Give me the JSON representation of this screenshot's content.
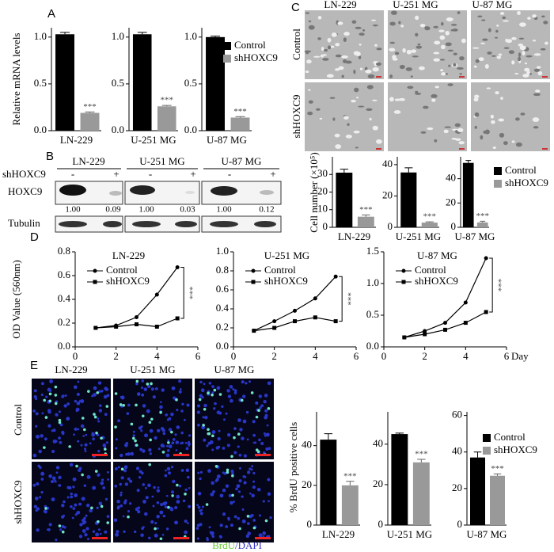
{
  "panel_labels": [
    "A",
    "B",
    "C",
    "D",
    "E"
  ],
  "blot": {
    "cell_lines": [
      "LN-229",
      "U-251 MG",
      "U-87 MG"
    ],
    "condition_label": "shHOXC9",
    "signs": [
      "-",
      "+"
    ],
    "rows": [
      "HOXC9",
      "Tubulin"
    ],
    "ratios": [
      "1.00",
      "0.09",
      "1.00",
      "0.03",
      "1.00",
      "0.12"
    ]
  },
  "images_c": {
    "cell_lines": [
      "LN-229",
      "U-251 MG",
      "U-87 MG"
    ],
    "conditions": [
      "Control",
      "shHOXC9"
    ]
  },
  "images_e": {
    "cell_lines": [
      "LN-229",
      "U-251 MG",
      "U-87 MG"
    ],
    "conditions": [
      "Control",
      "shHOXC9"
    ],
    "stain": [
      "BrdU",
      "/DAPI"
    ]
  },
  "chart_data": [
    {
      "type": "bar",
      "y_label": "Relative mRNA levels",
      "x_label": "LN-229",
      "values": [
        1.03,
        0.19
      ],
      "errors": [
        0.02,
        0.01
      ],
      "colors": [
        "#000000",
        "#999999"
      ],
      "annotation": "***",
      "ylim": [
        0,
        1.1
      ],
      "yticks": [
        {
          "value": 0,
          "label": "0.0"
        },
        0.5,
        {
          "value": 1,
          "label": "1.0"
        }
      ]
    },
    {
      "type": "bar",
      "x_label": "U-251 MG",
      "values": [
        1.03,
        0.26
      ],
      "errors": [
        0.02,
        0.01
      ],
      "colors": [
        "#000000",
        "#999999"
      ],
      "annotation": "***",
      "ylim": [
        0,
        1.1
      ],
      "yticks": [
        {
          "value": 0,
          "label": "0.0"
        },
        0.5,
        {
          "value": 1,
          "label": "1.0"
        }
      ]
    },
    {
      "type": "bar",
      "x_label": "U-87 MG",
      "values": [
        1.0,
        0.14
      ],
      "errors": [
        0.01,
        0.01
      ],
      "colors": [
        "#000000",
        "#999999"
      ],
      "annotation": "***",
      "legend": [
        "Control",
        "shHOXC9"
      ],
      "ylim": [
        0,
        1.1
      ],
      "yticks": [
        {
          "value": 0,
          "label": "0.0"
        },
        0.5,
        {
          "value": 1,
          "label": "1.0"
        }
      ]
    },
    {
      "type": "bar",
      "y_label": "Cell number (×10⁵)",
      "x_label": "LN-229",
      "values": [
        31,
        6
      ],
      "errors": [
        2,
        1
      ],
      "colors": [
        "#000000",
        "#999999"
      ],
      "annotation": "***",
      "ylim": [
        0,
        40
      ],
      "yticks": [
        0,
        10,
        20,
        30
      ]
    },
    {
      "type": "bar",
      "x_label": "U-251 MG",
      "values": [
        35,
        3
      ],
      "errors": [
        3,
        0.5
      ],
      "colors": [
        "#000000",
        "#999999"
      ],
      "annotation": "***",
      "ylim": [
        0,
        45
      ],
      "yticks": [
        0,
        20,
        40
      ]
    },
    {
      "type": "bar",
      "x_label": "U-87 MG",
      "values": [
        53,
        4
      ],
      "errors": [
        2,
        1
      ],
      "colors": [
        "#000000",
        "#999999"
      ],
      "annotation": "***",
      "legend": [
        "Control",
        "shHOXC9"
      ],
      "ylim": [
        0,
        58
      ],
      "yticks": [
        0,
        20,
        40
      ]
    },
    {
      "type": "line",
      "title": "LN-229",
      "y_label": "OD Value (560nm)",
      "x": [
        1,
        2,
        3,
        4,
        5
      ],
      "series": [
        {
          "name": "Control",
          "color": "#000000",
          "marker": "circle",
          "values": [
            0.16,
            0.18,
            0.25,
            0.44,
            0.67
          ]
        },
        {
          "name": "shHOXC9",
          "color": "#000000",
          "marker": "square",
          "values": [
            0.16,
            0.17,
            0.19,
            0.17,
            0.24
          ]
        }
      ],
      "annotation": "***",
      "xlim": [
        0,
        6
      ],
      "xticks": [
        0,
        2,
        4,
        6
      ],
      "ylim": [
        0,
        0.8
      ],
      "yticks": [
        {
          "value": 0,
          "label": "0.0"
        },
        0.2,
        0.4,
        0.6,
        0.8
      ]
    },
    {
      "type": "line",
      "title": "U-251 MG",
      "x": [
        1,
        2,
        3,
        4,
        5
      ],
      "series": [
        {
          "name": "Control",
          "color": "#000000",
          "marker": "circle",
          "values": [
            0.17,
            0.27,
            0.38,
            0.51,
            0.74
          ]
        },
        {
          "name": "shHOXC9",
          "color": "#000000",
          "marker": "square",
          "values": [
            0.17,
            0.2,
            0.27,
            0.31,
            0.27
          ]
        }
      ],
      "annotation": "***",
      "xlim": [
        0,
        6
      ],
      "xticks": [
        0,
        2,
        4,
        6
      ],
      "ylim": [
        0,
        1.0
      ],
      "yticks": [
        {
          "value": 0,
          "label": "0.0"
        },
        0.2,
        0.4,
        0.6,
        0.8,
        {
          "value": 1,
          "label": "1.0"
        }
      ]
    },
    {
      "type": "line",
      "title": "U-87 MG",
      "x_label": "Day",
      "x": [
        1,
        2,
        3,
        4,
        5
      ],
      "series": [
        {
          "name": "Control",
          "color": "#000000",
          "marker": "circle",
          "values": [
            0.15,
            0.25,
            0.38,
            0.7,
            1.4
          ]
        },
        {
          "name": "shHOXC9",
          "color": "#000000",
          "marker": "square",
          "values": [
            0.15,
            0.2,
            0.27,
            0.38,
            0.55
          ]
        }
      ],
      "annotation": "***",
      "xlim": [
        0,
        6
      ],
      "xticks": [
        0,
        2,
        4,
        6
      ],
      "ylim": [
        0,
        1.5
      ],
      "yticks": [
        {
          "value": 0,
          "label": "0.0"
        },
        0.5,
        {
          "value": 1,
          "label": "1.0"
        },
        1.5
      ]
    },
    {
      "type": "bar",
      "y_label": "% BrdU positive cells",
      "x_label": "LN-229",
      "values": [
        43,
        20
      ],
      "errors": [
        3,
        2
      ],
      "colors": [
        "#000000",
        "#999999"
      ],
      "annotation": "***",
      "ylim": [
        0,
        57
      ],
      "yticks": [
        0,
        20,
        40
      ]
    },
    {
      "type": "bar",
      "x_label": "U-251 MG",
      "values": [
        45,
        31
      ],
      "errors": [
        0.5,
        1.5
      ],
      "colors": [
        "#000000",
        "#999999"
      ],
      "annotation": "***",
      "ylim": [
        0,
        56
      ],
      "yticks": [
        0,
        20,
        40
      ]
    },
    {
      "type": "bar",
      "x_label": "U-87 MG",
      "values": [
        37,
        27
      ],
      "errors": [
        3,
        1
      ],
      "colors": [
        "#000000",
        "#999999"
      ],
      "annotation": "***",
      "legend": [
        "Control",
        "shHOXC9"
      ],
      "ylim": [
        0,
        62
      ],
      "yticks": [
        0,
        20,
        40,
        60
      ]
    }
  ]
}
